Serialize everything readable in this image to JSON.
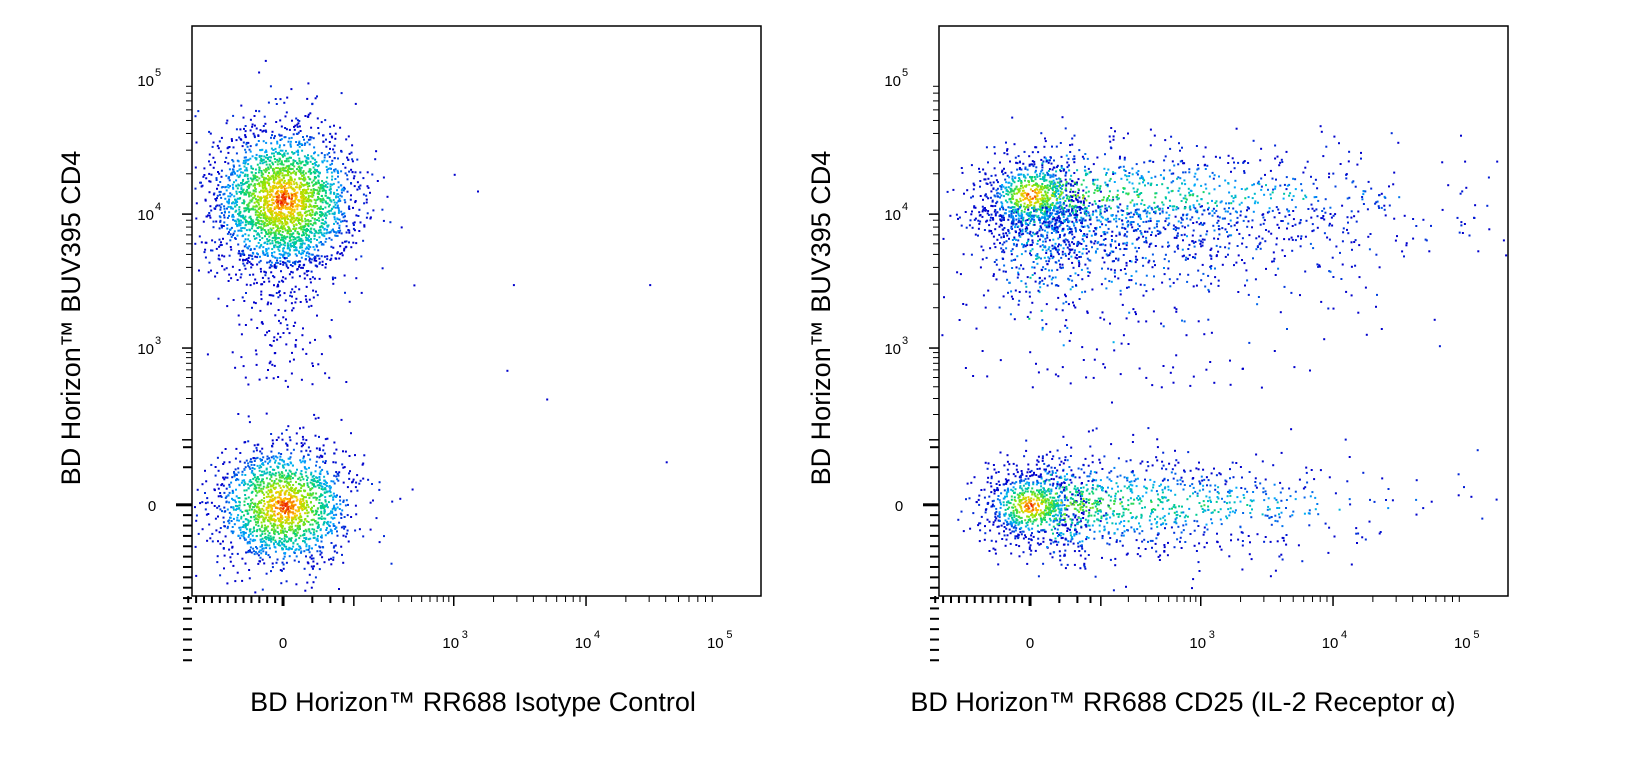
{
  "colors": {
    "density_low": "#0000cc",
    "density_mid": "#00dd66",
    "density_high": "#ee0000",
    "frame": "#000000"
  },
  "chart_data": [
    {
      "type": "scatter",
      "subtype": "flow-cytometry-density-dot-plot",
      "xlabel": "BD Horizon™ RR688 Isotype Control",
      "ylabel": "BD Horizon™ BUV395 CD4",
      "x_scale": "biexponential",
      "y_scale": "biexponential",
      "x_ticks": [
        {
          "base": "0",
          "exp": ""
        },
        {
          "base": "10",
          "exp": "3"
        },
        {
          "base": "10",
          "exp": "4"
        },
        {
          "base": "10",
          "exp": "5"
        }
      ],
      "y_ticks": [
        {
          "base": "0",
          "exp": ""
        },
        {
          "base": "10",
          "exp": "3"
        },
        {
          "base": "10",
          "exp": "4"
        },
        {
          "base": "10",
          "exp": "5"
        }
      ],
      "xlim": [
        -300,
        250000
      ],
      "ylim": [
        -600,
        250000
      ],
      "grid": false,
      "populations": [
        {
          "name_shown": false,
          "x_center": 0,
          "y_center": 13000,
          "x_spread": "low",
          "y_spread": "4000-30000",
          "relative_count": 0.62
        },
        {
          "name_shown": false,
          "x_center": 0,
          "y_center": 0,
          "x_spread": "low",
          "y_spread": "-400-400",
          "relative_count": 0.38
        }
      ],
      "outliers": [
        [
          1000,
          20000
        ],
        [
          1500,
          15000
        ],
        [
          2800,
          3000
        ],
        [
          30000,
          3000
        ],
        [
          2500,
          600
        ],
        [
          5000,
          300
        ],
        [
          40000,
          50
        ]
      ]
    },
    {
      "type": "scatter",
      "subtype": "flow-cytometry-density-dot-plot",
      "xlabel": "BD Horizon™ RR688 CD25 (IL-2 Receptor α)",
      "ylabel": "BD Horizon™ BUV395 CD4",
      "x_scale": "biexponential",
      "y_scale": "biexponential",
      "x_ticks": [
        {
          "base": "0",
          "exp": ""
        },
        {
          "base": "10",
          "exp": "3"
        },
        {
          "base": "10",
          "exp": "4"
        },
        {
          "base": "10",
          "exp": "5"
        }
      ],
      "y_ticks": [
        {
          "base": "0",
          "exp": ""
        },
        {
          "base": "10",
          "exp": "3"
        },
        {
          "base": "10",
          "exp": "4"
        },
        {
          "base": "10",
          "exp": "5"
        }
      ],
      "xlim": [
        -300,
        250000
      ],
      "ylim": [
        -600,
        250000
      ],
      "grid": false,
      "populations": [
        {
          "name_shown": false,
          "x_center": 0,
          "y_center": 14000,
          "x_spread": "0-10000",
          "y_spread": "4000-25000",
          "relative_count": 0.62
        },
        {
          "name_shown": false,
          "x_center": 0,
          "y_center": 0,
          "x_spread": "0-20000",
          "y_spread": "-400-400",
          "relative_count": 0.38
        }
      ],
      "outliers": [
        [
          100000,
          16000
        ],
        [
          200000,
          5000
        ]
      ]
    }
  ]
}
